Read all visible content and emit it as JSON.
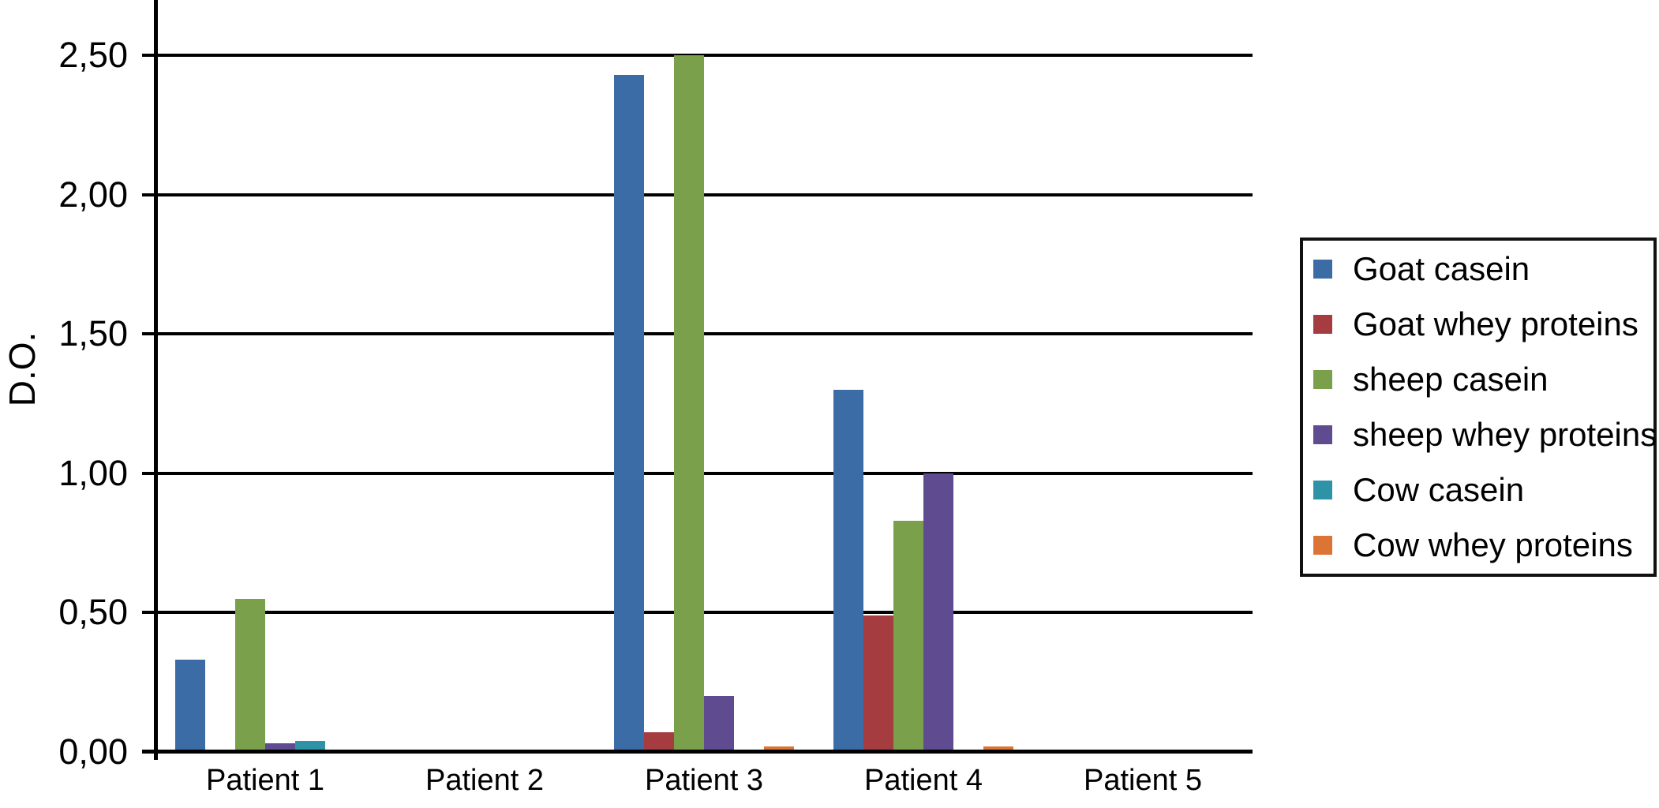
{
  "chart_data": {
    "type": "bar",
    "title": "",
    "ylabel": "D.O.",
    "xlabel": "",
    "categories": [
      "Patient 1",
      "Patient 2",
      "Patient 3",
      "Patient 4",
      "Patient 5"
    ],
    "y_ticks": [
      {
        "label": "0,00",
        "value": 0.0
      },
      {
        "label": "0,50",
        "value": 0.5
      },
      {
        "label": "1,00",
        "value": 1.0
      },
      {
        "label": "1,50",
        "value": 1.5
      },
      {
        "label": "2,00",
        "value": 2.0
      },
      {
        "label": "2,50",
        "value": 2.5
      }
    ],
    "ylim": [
      0,
      2.7
    ],
    "grid": true,
    "legend_position": "right",
    "series": [
      {
        "name": "Goat casein",
        "color": "#3B6CA6",
        "values": [
          0.33,
          0,
          2.43,
          1.3,
          0
        ]
      },
      {
        "name": "Goat whey proteins",
        "color": "#A53C40",
        "values": [
          0,
          0,
          0.07,
          0.49,
          0
        ]
      },
      {
        "name": "sheep casein",
        "color": "#7AA04C",
        "values": [
          0.55,
          0,
          2.5,
          0.83,
          0
        ]
      },
      {
        "name": "sheep whey proteins",
        "color": "#5F4B8F",
        "values": [
          0.03,
          0,
          0.2,
          1.0,
          0
        ]
      },
      {
        "name": "Cow casein",
        "color": "#2F93A8",
        "values": [
          0.04,
          0,
          0,
          0,
          0
        ]
      },
      {
        "name": "Cow whey proteins",
        "color": "#DC7435",
        "values": [
          0,
          0,
          0.02,
          0.02,
          0
        ]
      }
    ]
  }
}
